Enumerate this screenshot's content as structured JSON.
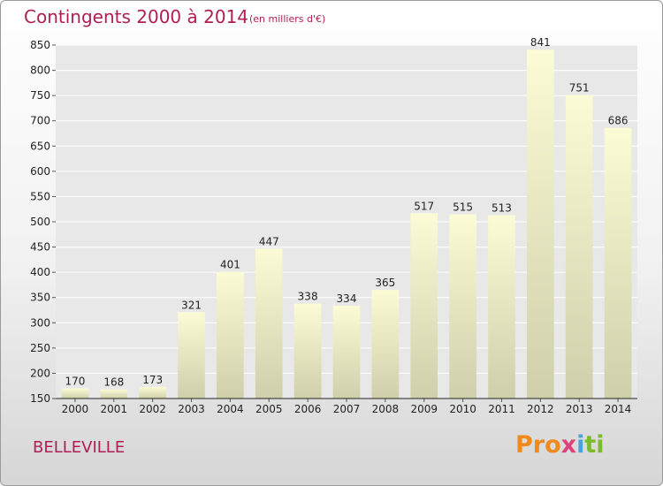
{
  "header": {
    "title": "Contingents 2000 à 2014",
    "subtitle": "(en milliers d'€)"
  },
  "footer": {
    "commune": "BELLEVILLE",
    "logo_text": "Proxiti"
  },
  "colors": {
    "title": "#b01e56",
    "bar_top": "#fbfbd6",
    "bar_bottom": "#d0cfab",
    "grid": "#ffffff"
  },
  "chart_data": {
    "type": "bar",
    "title": "Contingents 2000 à 2014",
    "subtitle": "(en milliers d'€)",
    "categories": [
      "2000",
      "2001",
      "2002",
      "2003",
      "2004",
      "2005",
      "2006",
      "2007",
      "2008",
      "2009",
      "2010",
      "2011",
      "2012",
      "2013",
      "2014"
    ],
    "values": [
      170,
      168,
      173,
      321,
      401,
      447,
      338,
      334,
      365,
      517,
      515,
      513,
      841,
      751,
      686
    ],
    "ylim": [
      150,
      850
    ],
    "yticks": [
      150,
      200,
      250,
      300,
      350,
      400,
      450,
      500,
      550,
      600,
      650,
      700,
      750,
      800,
      850
    ],
    "grid": true,
    "data_labels": true
  }
}
